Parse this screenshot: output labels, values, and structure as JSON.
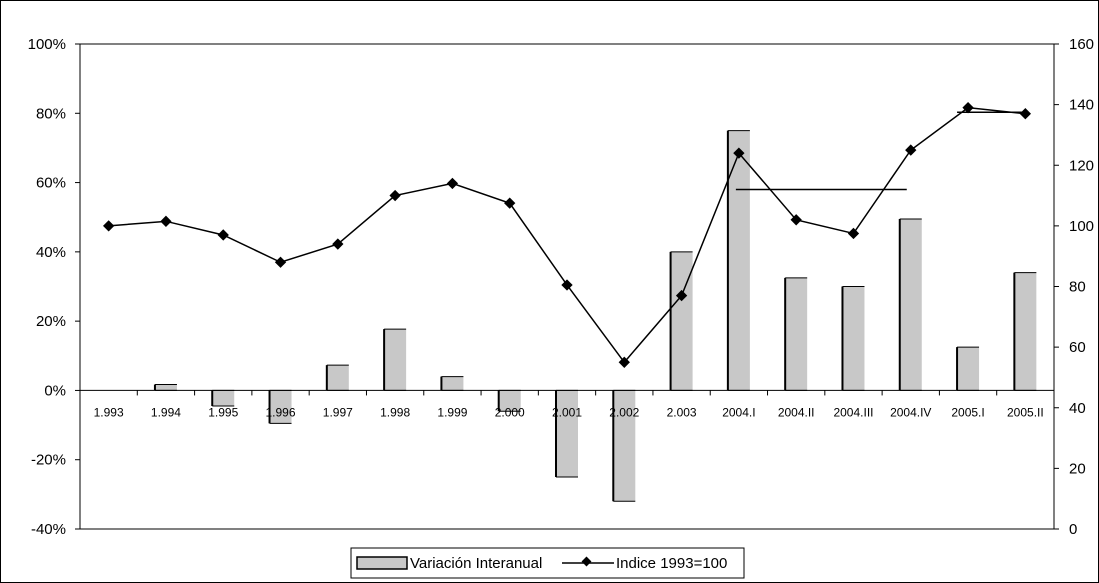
{
  "chart_data": {
    "type": "bar+line",
    "categories": [
      "1.993",
      "1.994",
      "1.995",
      "1.996",
      "1.997",
      "1.998",
      "1.999",
      "2.000",
      "2.001",
      "2.002",
      "2.003",
      "2004.I",
      "2004.II",
      "2004.III",
      "2004.IV",
      "2005.I",
      "2005.II"
    ],
    "series": [
      {
        "name": "Variación Interanual",
        "type": "bar",
        "axis": "left",
        "values": [
          0,
          0.017,
          -0.045,
          -0.095,
          0.073,
          0.177,
          0.04,
          -0.06,
          -0.25,
          -0.32,
          0.4,
          0.75,
          0.325,
          0.3,
          0.495,
          0.125,
          0.34
        ]
      },
      {
        "name": "Indice 1993=100",
        "type": "line",
        "axis": "right",
        "values": [
          100,
          101.5,
          97,
          88,
          94,
          110,
          114,
          107.5,
          80.5,
          55,
          77,
          124,
          102,
          97.5,
          125,
          139,
          137
        ]
      }
    ],
    "y_left": {
      "min": -0.4,
      "max": 1.0,
      "ticks": [
        "-40%",
        "-20%",
        "0%",
        "20%",
        "40%",
        "60%",
        "80%",
        "100%"
      ]
    },
    "y_right": {
      "min": 0,
      "max": 160,
      "ticks": [
        "0",
        "20",
        "40",
        "60",
        "80",
        "100",
        "120",
        "140",
        "160"
      ]
    },
    "legend": {
      "position": "bottom"
    }
  }
}
